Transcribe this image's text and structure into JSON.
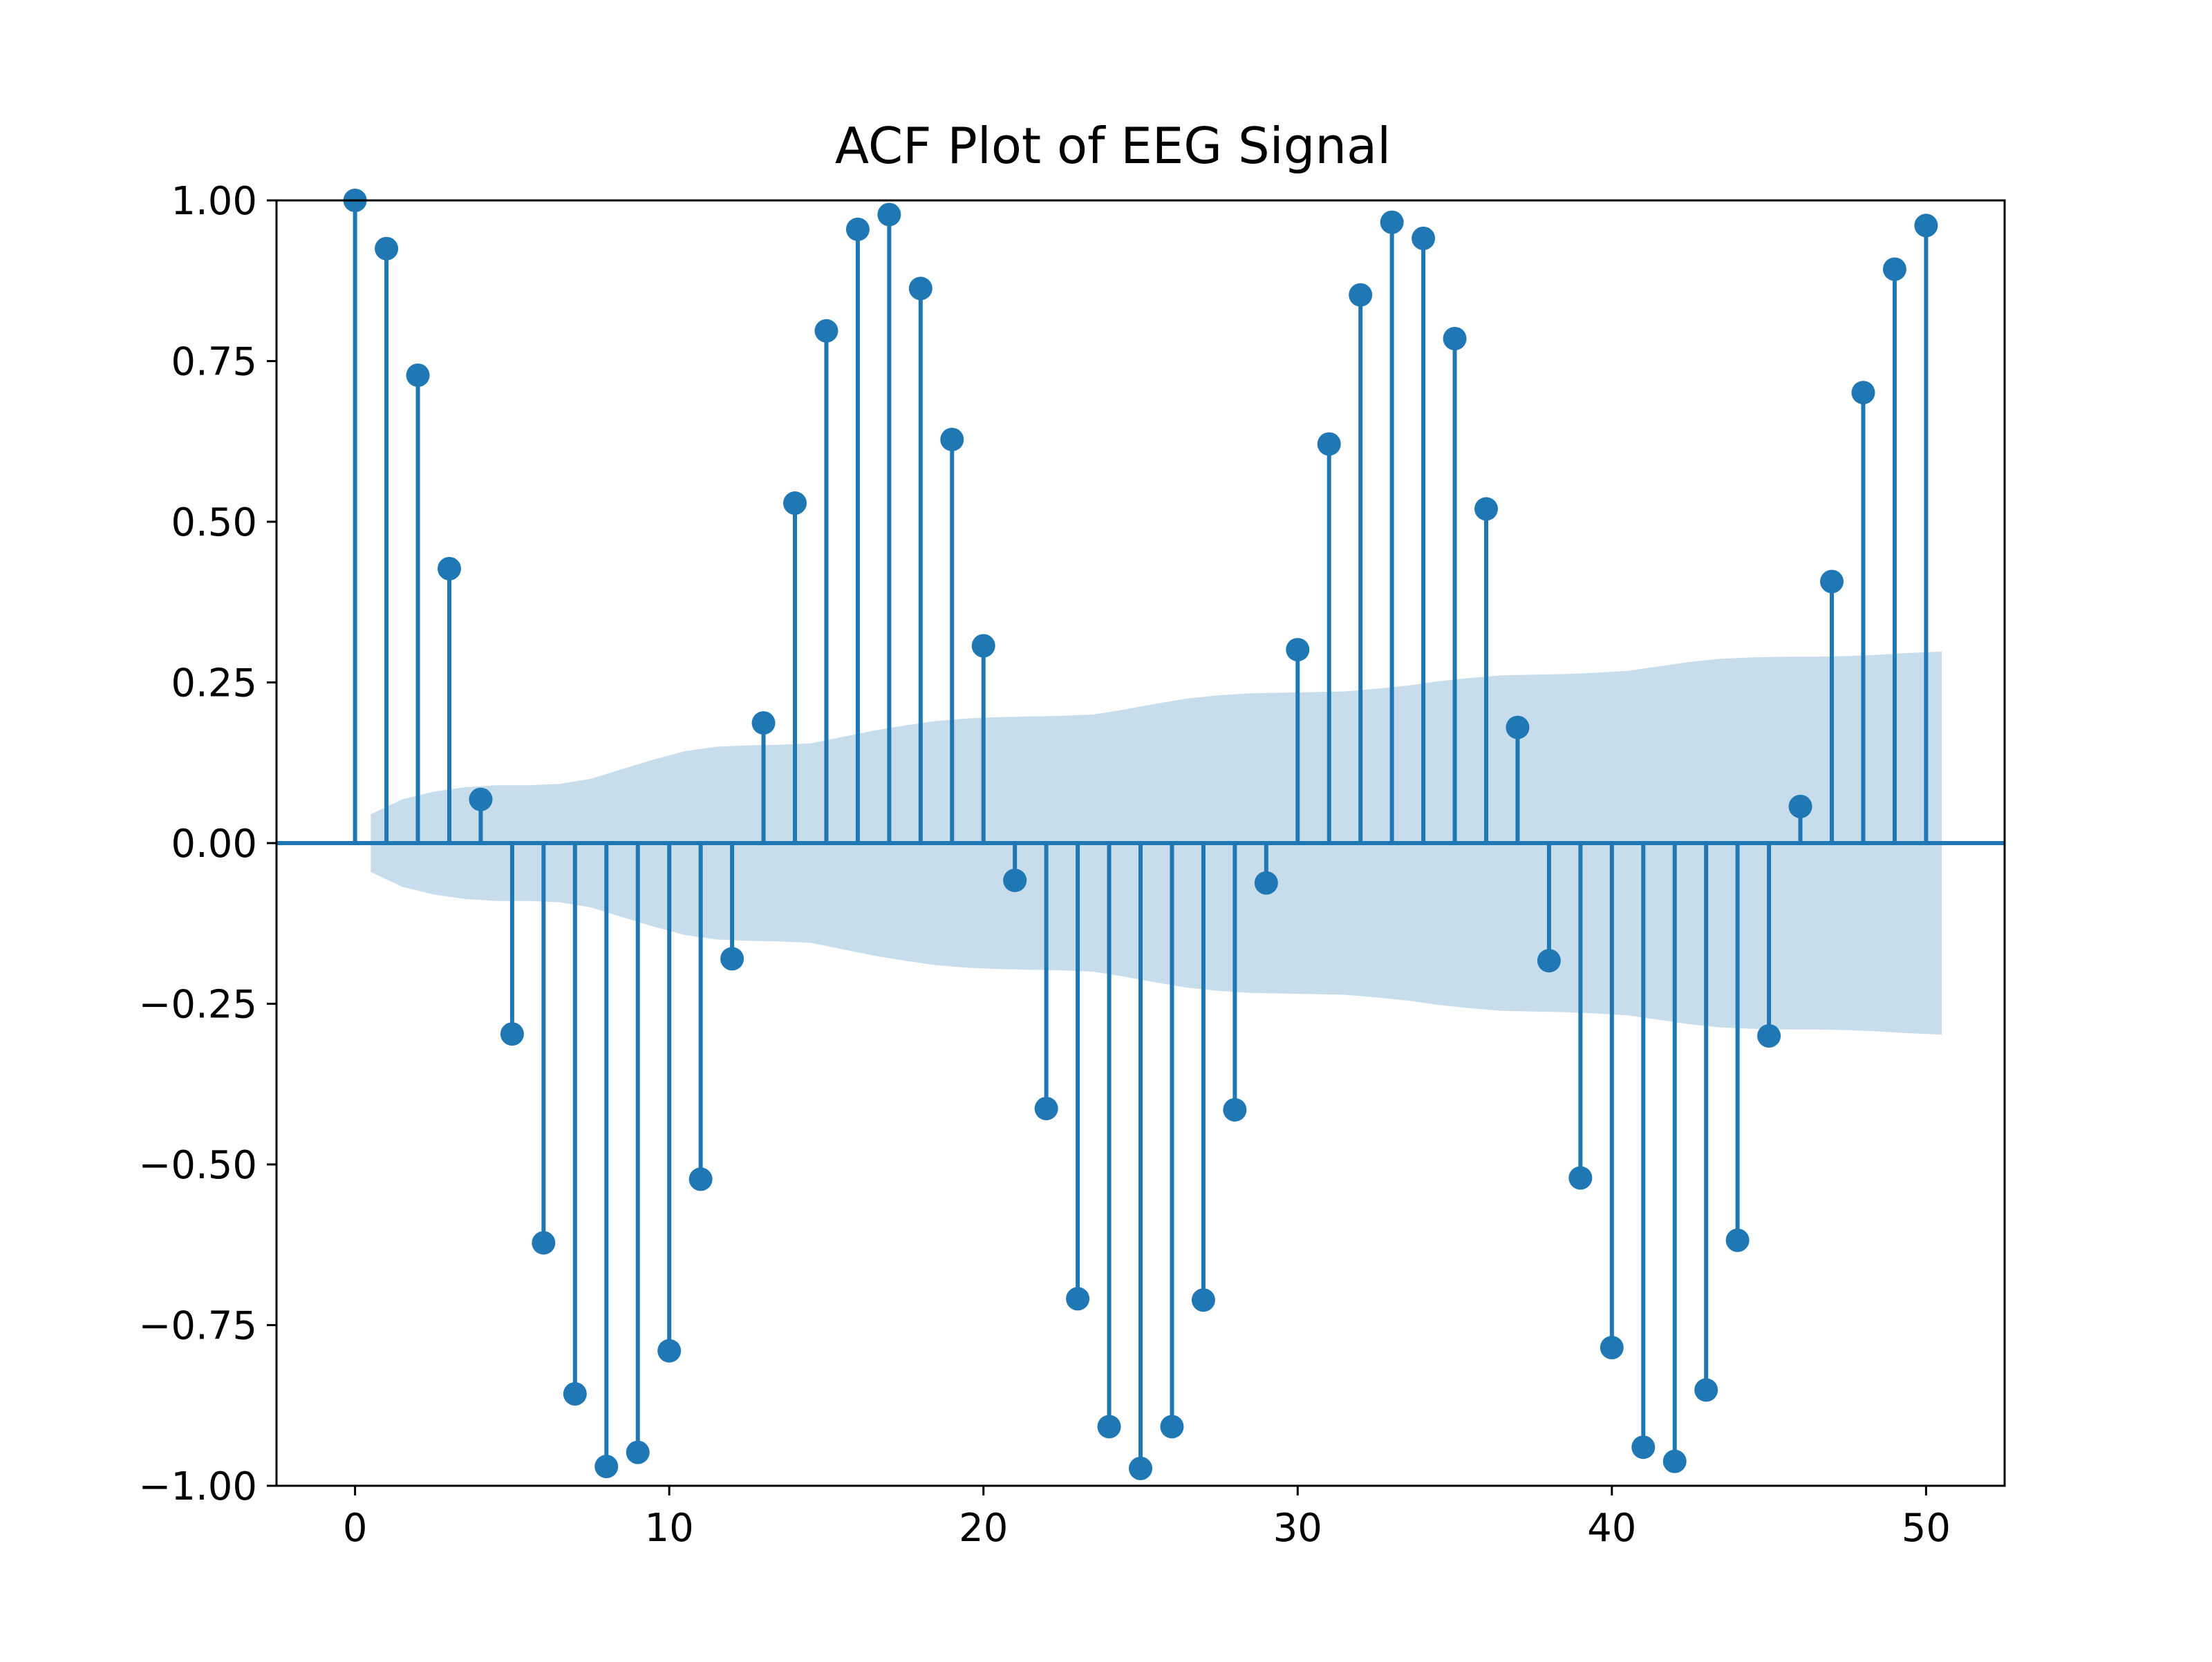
{
  "chart_data": {
    "type": "stem",
    "title": "ACF Plot of EEG Signal",
    "xlabel": "",
    "ylabel": "",
    "xlim": [
      -2.5,
      52.5
    ],
    "ylim": [
      -1.0,
      1.0
    ],
    "xticks": [
      0,
      10,
      20,
      30,
      40,
      50
    ],
    "xtick_labels": [
      "0",
      "10",
      "20",
      "30",
      "40",
      "50"
    ],
    "yticks": [
      1.0,
      0.75,
      0.5,
      0.25,
      0.0,
      -0.25,
      -0.5,
      -0.75,
      -1.0
    ],
    "ytick_labels": [
      "1.00",
      "0.75",
      "0.50",
      "0.25",
      "0.00",
      "−0.25",
      "−0.50",
      "−0.75",
      "−1.00"
    ],
    "grid": false,
    "lags": [
      0,
      1,
      2,
      3,
      4,
      5,
      6,
      7,
      8,
      9,
      10,
      11,
      12,
      13,
      14,
      15,
      16,
      17,
      18,
      19,
      20,
      21,
      22,
      23,
      24,
      25,
      26,
      27,
      28,
      29,
      30,
      31,
      32,
      33,
      34,
      35,
      36,
      37,
      38,
      39,
      40,
      41,
      42,
      43,
      44,
      45,
      46,
      47,
      48,
      49,
      50
    ],
    "acf": [
      1.0,
      0.925,
      0.728,
      0.427,
      0.068,
      -0.297,
      -0.622,
      -0.857,
      -0.97,
      -0.948,
      -0.79,
      -0.523,
      -0.18,
      0.187,
      0.529,
      0.797,
      0.955,
      0.978,
      0.863,
      0.628,
      0.307,
      -0.058,
      -0.413,
      -0.709,
      -0.908,
      -0.973,
      -0.908,
      -0.711,
      -0.415,
      -0.062,
      0.301,
      0.621,
      0.853,
      0.966,
      0.941,
      0.785,
      0.52,
      0.18,
      -0.183,
      -0.521,
      -0.785,
      -0.94,
      -0.962,
      -0.851,
      -0.618,
      -0.3,
      0.057,
      0.407,
      0.701,
      0.893,
      0.961
    ],
    "confint_upper": [
      0.045,
      0.068,
      0.08,
      0.087,
      0.09,
      0.09,
      0.092,
      0.1,
      0.115,
      0.13,
      0.143,
      0.15,
      0.152,
      0.153,
      0.155,
      0.165,
      0.175,
      0.183,
      0.19,
      0.194,
      0.196,
      0.197,
      0.198,
      0.2,
      0.208,
      0.217,
      0.225,
      0.23,
      0.233,
      0.234,
      0.235,
      0.236,
      0.24,
      0.245,
      0.252,
      0.257,
      0.261,
      0.262,
      0.263,
      0.265,
      0.268,
      0.275,
      0.282,
      0.287,
      0.289,
      0.29,
      0.29,
      0.291,
      0.293,
      0.296,
      0.298
    ],
    "colors": {
      "stem": "#1f77b4",
      "confidence_band": "#1f77b4",
      "confidence_band_opacity": 0.25
    }
  }
}
